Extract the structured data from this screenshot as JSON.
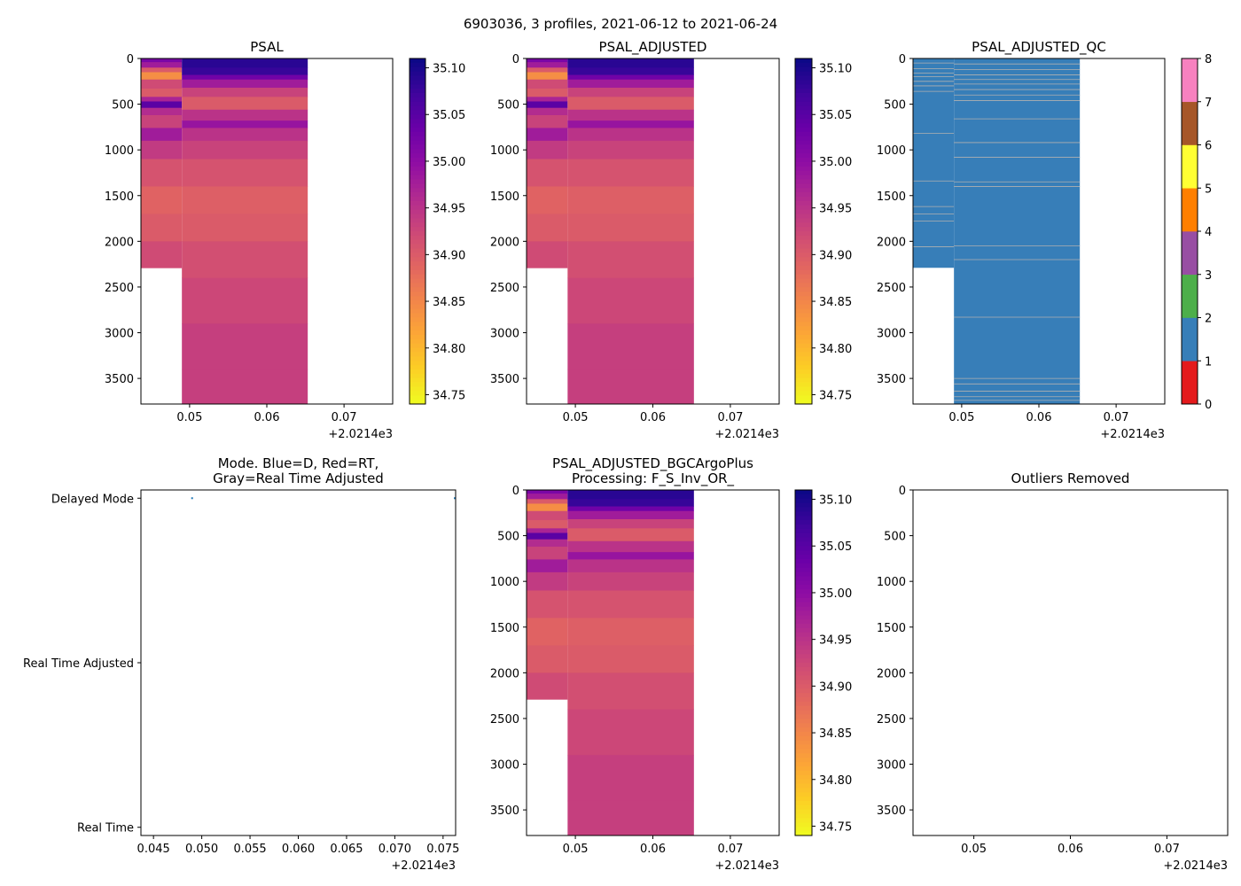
{
  "figure_title": "6903036, 3 profiles, 2021-06-12 to 2021-06-24",
  "offset_label": "+2.0214e3",
  "colors": {
    "plasma": [
      "#0d0887",
      "#41049d",
      "#6a00a8",
      "#8f0da4",
      "#b12a90",
      "#cc4778",
      "#e16462",
      "#f2844b",
      "#fca636",
      "#fcce25",
      "#f0f921"
    ],
    "qc": [
      "#e41a1c",
      "#377eb8",
      "#4daf4a",
      "#984ea3",
      "#ff7f00",
      "#ffff33",
      "#a65628",
      "#f781bf",
      "#999999"
    ],
    "qc_line": "#b0b0b0",
    "mode_marker": "#1f77b4"
  },
  "chart_data": [
    {
      "id": "psal",
      "type": "heatmap",
      "title": "PSAL",
      "xlim": [
        0.0437,
        0.0763
      ],
      "xticks": [
        0.05,
        0.06,
        0.07
      ],
      "xtick_labels": [
        "0.05",
        "0.06",
        "0.07"
      ],
      "ylim": [
        3780,
        0
      ],
      "yticks": [
        0,
        500,
        1000,
        1500,
        2000,
        2500,
        3000,
        3500
      ],
      "ytick_labels": [
        "0",
        "500",
        "1000",
        "1500",
        "2000",
        "2500",
        "3000",
        "3500"
      ],
      "colorbar": {
        "range": [
          34.74,
          35.11
        ],
        "ticks": [
          34.75,
          34.8,
          34.85,
          34.9,
          34.95,
          35.0,
          35.05,
          35.1
        ],
        "tick_labels": [
          "34.75",
          "34.80",
          "34.85",
          "34.90",
          "34.95",
          "35.00",
          "35.05",
          "35.10"
        ]
      },
      "profiles": [
        {
          "x_range": [
            0.0437,
            0.049
          ],
          "max_depth": 2290,
          "layers": [
            [
              0,
              35.02
            ],
            [
              40,
              34.98
            ],
            [
              100,
              34.9
            ],
            [
              150,
              34.84
            ],
            [
              230,
              34.92
            ],
            [
              330,
              34.9
            ],
            [
              420,
              34.97
            ],
            [
              470,
              35.05
            ],
            [
              540,
              34.96
            ],
            [
              620,
              34.93
            ],
            [
              760,
              34.98
            ],
            [
              900,
              34.94
            ],
            [
              1100,
              34.91
            ],
            [
              1400,
              34.89
            ],
            [
              1700,
              34.9
            ],
            [
              2000,
              34.92
            ],
            [
              2290,
              34.93
            ]
          ]
        },
        {
          "x_range": [
            0.049,
            0.0653
          ],
          "max_depth": 3780,
          "layers": [
            [
              0,
              35.09
            ],
            [
              100,
              35.08
            ],
            [
              180,
              35.03
            ],
            [
              230,
              34.98
            ],
            [
              320,
              34.93
            ],
            [
              420,
              34.9
            ],
            [
              560,
              34.95
            ],
            [
              680,
              34.99
            ],
            [
              760,
              34.95
            ],
            [
              900,
              34.93
            ],
            [
              1100,
              34.91
            ],
            [
              1400,
              34.895
            ],
            [
              1700,
              34.9
            ],
            [
              2000,
              34.915
            ],
            [
              2400,
              34.925
            ],
            [
              2900,
              34.935
            ],
            [
              3400,
              34.935
            ],
            [
              3780,
              34.925
            ]
          ]
        }
      ]
    },
    {
      "id": "psal_adj",
      "type": "heatmap",
      "title": "PSAL_ADJUSTED",
      "xlim": [
        0.0437,
        0.0763
      ],
      "xticks": [
        0.05,
        0.06,
        0.07
      ],
      "xtick_labels": [
        "0.05",
        "0.06",
        "0.07"
      ],
      "ylim": [
        3780,
        0
      ],
      "yticks": [
        0,
        500,
        1000,
        1500,
        2000,
        2500,
        3000,
        3500
      ],
      "ytick_labels": [
        "0",
        "500",
        "1000",
        "1500",
        "2000",
        "2500",
        "3000",
        "3500"
      ],
      "colorbar": {
        "range": [
          34.74,
          35.11
        ],
        "ticks": [
          34.75,
          34.8,
          34.85,
          34.9,
          34.95,
          35.0,
          35.05,
          35.1
        ],
        "tick_labels": [
          "34.75",
          "34.80",
          "34.85",
          "34.90",
          "34.95",
          "35.00",
          "35.05",
          "35.10"
        ]
      },
      "profiles": [
        {
          "x_range": [
            0.0437,
            0.049
          ],
          "max_depth": 2290,
          "layers": [
            [
              0,
              35.02
            ],
            [
              40,
              34.98
            ],
            [
              100,
              34.9
            ],
            [
              150,
              34.84
            ],
            [
              230,
              34.92
            ],
            [
              330,
              34.9
            ],
            [
              420,
              34.97
            ],
            [
              470,
              35.05
            ],
            [
              540,
              34.96
            ],
            [
              620,
              34.93
            ],
            [
              760,
              34.98
            ],
            [
              900,
              34.94
            ],
            [
              1100,
              34.91
            ],
            [
              1400,
              34.89
            ],
            [
              1700,
              34.9
            ],
            [
              2000,
              34.92
            ],
            [
              2290,
              34.93
            ]
          ]
        },
        {
          "x_range": [
            0.049,
            0.0653
          ],
          "max_depth": 3780,
          "layers": [
            [
              0,
              35.09
            ],
            [
              100,
              35.08
            ],
            [
              180,
              35.03
            ],
            [
              230,
              34.98
            ],
            [
              320,
              34.93
            ],
            [
              420,
              34.9
            ],
            [
              560,
              34.95
            ],
            [
              680,
              34.99
            ],
            [
              760,
              34.95
            ],
            [
              900,
              34.93
            ],
            [
              1100,
              34.91
            ],
            [
              1400,
              34.895
            ],
            [
              1700,
              34.9
            ],
            [
              2000,
              34.915
            ],
            [
              2400,
              34.925
            ],
            [
              2900,
              34.935
            ],
            [
              3400,
              34.935
            ],
            [
              3780,
              34.925
            ]
          ]
        }
      ]
    },
    {
      "id": "qc",
      "type": "heatmap",
      "title": "PSAL_ADJUSTED_QC",
      "xlim": [
        0.0437,
        0.0763
      ],
      "xticks": [
        0.05,
        0.06,
        0.07
      ],
      "xtick_labels": [
        "0.05",
        "0.06",
        "0.07"
      ],
      "ylim": [
        3780,
        0
      ],
      "yticks": [
        0,
        500,
        1000,
        1500,
        2000,
        2500,
        3000,
        3500
      ],
      "ytick_labels": [
        "0",
        "500",
        "1000",
        "1500",
        "2000",
        "2500",
        "3000",
        "3500"
      ],
      "colorbar": {
        "range": [
          0,
          8
        ],
        "ticks": [
          0,
          1,
          2,
          3,
          4,
          5,
          6,
          7,
          8
        ],
        "tick_labels": [
          "0",
          "1",
          "2",
          "3",
          "4",
          "5",
          "6",
          "7",
          "8"
        ]
      },
      "profiles": [
        {
          "x_range": [
            0.0437,
            0.049
          ],
          "max_depth": 2290,
          "qc": 1,
          "gap_depths": [
            50,
            110,
            160,
            200,
            250,
            300,
            360,
            820,
            1340,
            1620,
            1700,
            1780,
            2060
          ]
        },
        {
          "x_range": [
            0.049,
            0.0653
          ],
          "max_depth": 3780,
          "qc": 1,
          "gap_depths": [
            60,
            120,
            180,
            230,
            280,
            340,
            400,
            460,
            660,
            920,
            1080,
            1350,
            1400,
            2050,
            2200,
            2830,
            3500,
            3560,
            3640,
            3700,
            3740
          ]
        }
      ]
    },
    {
      "id": "mode",
      "type": "scatter",
      "title": "Mode. Blue=D, Red=RT,\nGray=Real Time Adjusted",
      "xlim": [
        0.0437,
        0.0763
      ],
      "xticks": [
        0.045,
        0.05,
        0.055,
        0.06,
        0.065,
        0.07,
        0.075
      ],
      "xtick_labels": [
        "0.045",
        "0.050",
        "0.055",
        "0.060",
        "0.065",
        "0.070",
        "0.075"
      ],
      "ylim": [
        -0.05,
        2.05
      ],
      "yticks": [
        0,
        1,
        2
      ],
      "ytick_labels": [
        "Real Time",
        "Real Time Adjusted",
        "Delayed Mode"
      ],
      "points": [
        {
          "x": 0.049,
          "y": 2
        },
        {
          "x": 0.0763,
          "y": 2
        }
      ]
    },
    {
      "id": "bgc",
      "type": "heatmap",
      "title": "PSAL_ADJUSTED_BGCArgoPlus\nProcessing: F_S_Inv_OR_",
      "xlim": [
        0.0437,
        0.0763
      ],
      "xticks": [
        0.05,
        0.06,
        0.07
      ],
      "xtick_labels": [
        "0.05",
        "0.06",
        "0.07"
      ],
      "ylim": [
        3780,
        0
      ],
      "yticks": [
        0,
        500,
        1000,
        1500,
        2000,
        2500,
        3000,
        3500
      ],
      "ytick_labels": [
        "0",
        "500",
        "1000",
        "1500",
        "2000",
        "2500",
        "3000",
        "3500"
      ],
      "colorbar": {
        "range": [
          34.74,
          35.11
        ],
        "ticks": [
          34.75,
          34.8,
          34.85,
          34.9,
          34.95,
          35.0,
          35.05,
          35.1
        ],
        "tick_labels": [
          "34.75",
          "34.80",
          "34.85",
          "34.90",
          "34.95",
          "35.00",
          "35.05",
          "35.10"
        ]
      },
      "profiles": [
        {
          "x_range": [
            0.0437,
            0.049
          ],
          "max_depth": 2290,
          "layers": [
            [
              0,
              35.02
            ],
            [
              40,
              34.98
            ],
            [
              100,
              34.9
            ],
            [
              150,
              34.84
            ],
            [
              230,
              34.92
            ],
            [
              330,
              34.9
            ],
            [
              420,
              34.97
            ],
            [
              470,
              35.05
            ],
            [
              540,
              34.96
            ],
            [
              620,
              34.93
            ],
            [
              760,
              34.98
            ],
            [
              900,
              34.94
            ],
            [
              1100,
              34.91
            ],
            [
              1400,
              34.89
            ],
            [
              1700,
              34.9
            ],
            [
              2000,
              34.92
            ],
            [
              2290,
              34.93
            ]
          ]
        },
        {
          "x_range": [
            0.049,
            0.0653
          ],
          "max_depth": 3780,
          "layers": [
            [
              0,
              35.09
            ],
            [
              100,
              35.08
            ],
            [
              180,
              35.03
            ],
            [
              230,
              34.98
            ],
            [
              320,
              34.93
            ],
            [
              420,
              34.9
            ],
            [
              560,
              34.95
            ],
            [
              680,
              34.99
            ],
            [
              760,
              34.95
            ],
            [
              900,
              34.93
            ],
            [
              1100,
              34.91
            ],
            [
              1400,
              34.895
            ],
            [
              1700,
              34.9
            ],
            [
              2000,
              34.915
            ],
            [
              2400,
              34.925
            ],
            [
              2900,
              34.935
            ],
            [
              3400,
              34.935
            ],
            [
              3780,
              34.925
            ]
          ]
        }
      ]
    },
    {
      "id": "outliers",
      "type": "heatmap",
      "title": "Outliers Removed",
      "xlim": [
        0.0437,
        0.0763
      ],
      "xticks": [
        0.05,
        0.06,
        0.07
      ],
      "xtick_labels": [
        "0.05",
        "0.06",
        "0.07"
      ],
      "ylim": [
        3780,
        0
      ],
      "yticks": [
        0,
        500,
        1000,
        1500,
        2000,
        2500,
        3000,
        3500
      ],
      "ytick_labels": [
        "0",
        "500",
        "1000",
        "1500",
        "2000",
        "2500",
        "3000",
        "3500"
      ],
      "profiles": []
    }
  ]
}
